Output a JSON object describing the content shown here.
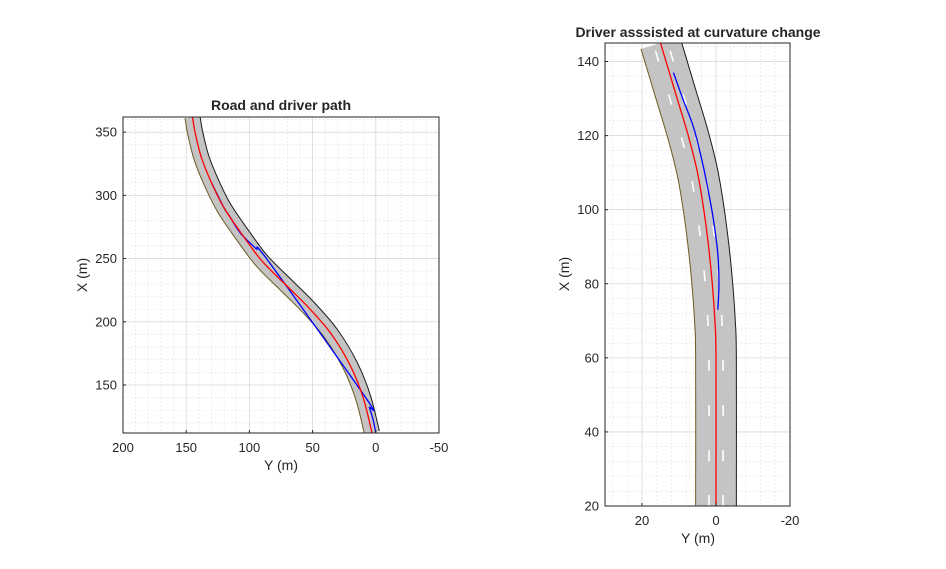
{
  "colors": {
    "road_fill": "#c4c4c4",
    "road_edge": "#1a1a1a",
    "road_edge_right": "#6b5a1f",
    "lane_marking": "#ffffff",
    "driver_path": "#0000ff",
    "assisted_path": "#ff0000"
  },
  "chart_data": [
    {
      "type": "line",
      "title": "Road and driver path",
      "xlabel": "Y (m)",
      "ylabel": "X (m)",
      "xlim": [
        200,
        -50
      ],
      "ylim": [
        112,
        362
      ],
      "x_reversed": true,
      "x_ticks": [
        200,
        150,
        100,
        50,
        0,
        -50
      ],
      "y_ticks": [
        150,
        200,
        250,
        300,
        350
      ],
      "grid": true,
      "minor_grid": true,
      "road": {
        "width": 12,
        "centerline": [
          [
            3,
            112
          ],
          [
            10,
            140
          ],
          [
            20,
            165
          ],
          [
            35,
            190
          ],
          [
            52,
            210
          ],
          [
            70,
            228
          ],
          [
            90,
            248
          ],
          [
            105,
            268
          ],
          [
            120,
            290
          ],
          [
            130,
            310
          ],
          [
            138,
            330
          ],
          [
            143,
            350
          ],
          [
            145,
            362
          ]
        ]
      },
      "series": [
        {
          "key": "assisted",
          "values": [
            [
              3,
              112
            ],
            [
              10,
              140
            ],
            [
              20,
              165
            ],
            [
              35,
              190
            ],
            [
              52,
              210
            ],
            [
              70,
              228
            ],
            [
              90,
              248
            ],
            [
              105,
              268
            ],
            [
              120,
              290
            ],
            [
              130,
              310
            ],
            [
              138,
              330
            ],
            [
              143,
              350
            ],
            [
              145,
              362
            ]
          ]
        },
        {
          "key": "driver",
          "values": [
            [
              0,
              112
            ],
            [
              2,
              122
            ],
            [
              5,
              132
            ],
            [
              8,
              140
            ],
            [
              85,
              248
            ],
            [
              95,
              258
            ],
            [
              107,
              270
            ],
            [
              116,
              284
            ],
            [
              120,
              290
            ],
            [
              130,
              310
            ]
          ]
        }
      ]
    },
    {
      "type": "line",
      "title": "Driver asssisted at curvature change",
      "xlabel": "Y (m)",
      "ylabel": "X (m)",
      "xlim": [
        30,
        -20
      ],
      "ylim": [
        20,
        145
      ],
      "x_reversed": true,
      "x_ticks": [
        20,
        0,
        -20
      ],
      "y_ticks": [
        20,
        40,
        60,
        80,
        100,
        120,
        140
      ],
      "grid": true,
      "minor_grid": true,
      "road": {
        "width": 11,
        "centerline": [
          [
            0,
            20
          ],
          [
            0,
            60
          ],
          [
            0.3,
            70
          ],
          [
            1,
            80
          ],
          [
            2,
            90
          ],
          [
            3.3,
            100
          ],
          [
            5,
            110
          ],
          [
            7.5,
            120
          ],
          [
            10.5,
            130
          ],
          [
            13.5,
            140
          ],
          [
            15,
            145
          ]
        ],
        "dash_offsets": [
          -1.9,
          1.9
        ]
      },
      "series": [
        {
          "key": "assisted",
          "values": [
            [
              0,
              20
            ],
            [
              0,
              60
            ],
            [
              0.3,
              70
            ],
            [
              1,
              80
            ],
            [
              2,
              90
            ],
            [
              3.3,
              100
            ],
            [
              5,
              110
            ],
            [
              7.5,
              120
            ],
            [
              10.5,
              130
            ],
            [
              13.5,
              140
            ],
            [
              15,
              145
            ]
          ]
        },
        {
          "key": "driver",
          "values": [
            [
              -0.5,
              73
            ],
            [
              -0.8,
              80
            ],
            [
              -0.5,
              88
            ],
            [
              0.5,
              96
            ],
            [
              1.5,
              102
            ],
            [
              3.5,
              112
            ],
            [
              6,
              122
            ],
            [
              9,
              130
            ],
            [
              11.5,
              137
            ]
          ]
        }
      ]
    }
  ]
}
